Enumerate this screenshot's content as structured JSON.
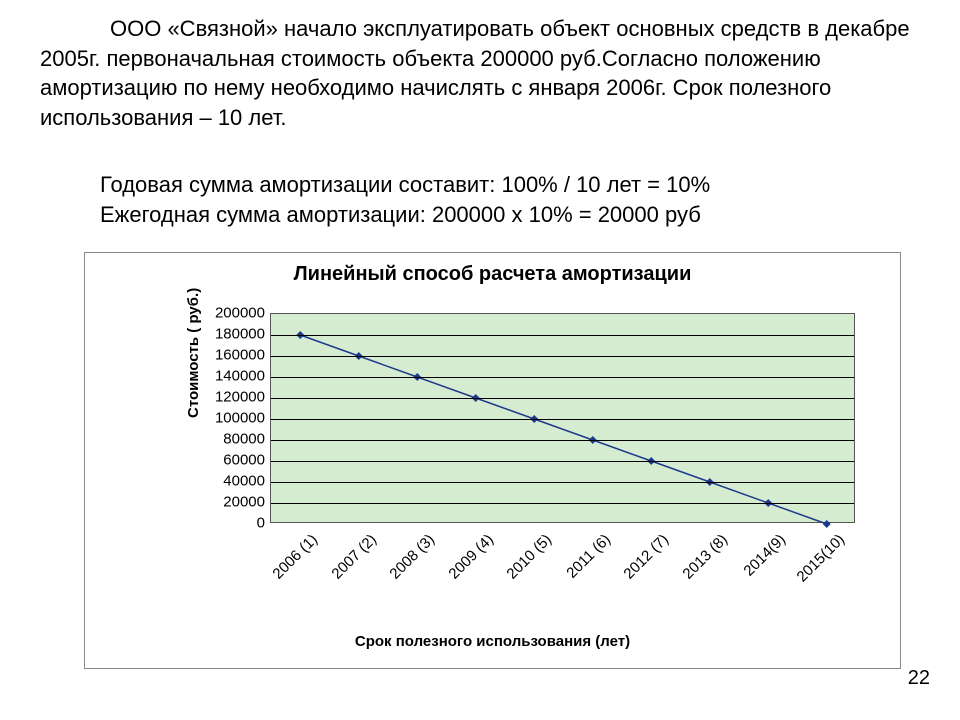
{
  "paragraph1": "ООО «Связной» начало эксплуатировать объект основных средств в декабре 2005г.  первоначальная стоимость объекта 200000 руб.Согласно положению амортизацию по нему необходимо начислять с января 2006г. Срок полезного использования – 10 лет.",
  "paragraph2_line1": "Годовая сумма амортизации составит: 100%  / 10 лет = 10%",
  "paragraph2_line2": "Ежегодная сумма амортизации: 200000 х 10% = 20000 руб",
  "page_number": "22",
  "chart": {
    "type": "line",
    "title": "Линейный способ расчета амортизации",
    "yaxis_title": "Стоимость ( руб.)",
    "xaxis_title": "Срок полезного использования (лет)",
    "background_color": "#d6ecd1",
    "grid_color": "#000000",
    "border_color": "#555555",
    "line_color": "#1f3a8a",
    "marker_color": "#1f3a8a",
    "marker_style": "diamond",
    "marker_size": 8,
    "line_width": 1.5,
    "ylim": [
      0,
      200000
    ],
    "ytick_step": 20000,
    "yticks": [
      0,
      20000,
      40000,
      60000,
      80000,
      100000,
      120000,
      140000,
      160000,
      180000,
      200000
    ],
    "categories": [
      "2006 (1)",
      "2007 (2)",
      "2008 (3)",
      "2009 (4)",
      "2010 (5)",
      "2011 (6)",
      "2012 (7)",
      "2013 (8)",
      "2014(9)",
      "2015(10)"
    ],
    "values": [
      180000,
      160000,
      140000,
      120000,
      100000,
      80000,
      60000,
      40000,
      20000,
      0
    ],
    "title_fontsize": 20,
    "label_fontsize": 15,
    "tick_fontsize": 15
  }
}
